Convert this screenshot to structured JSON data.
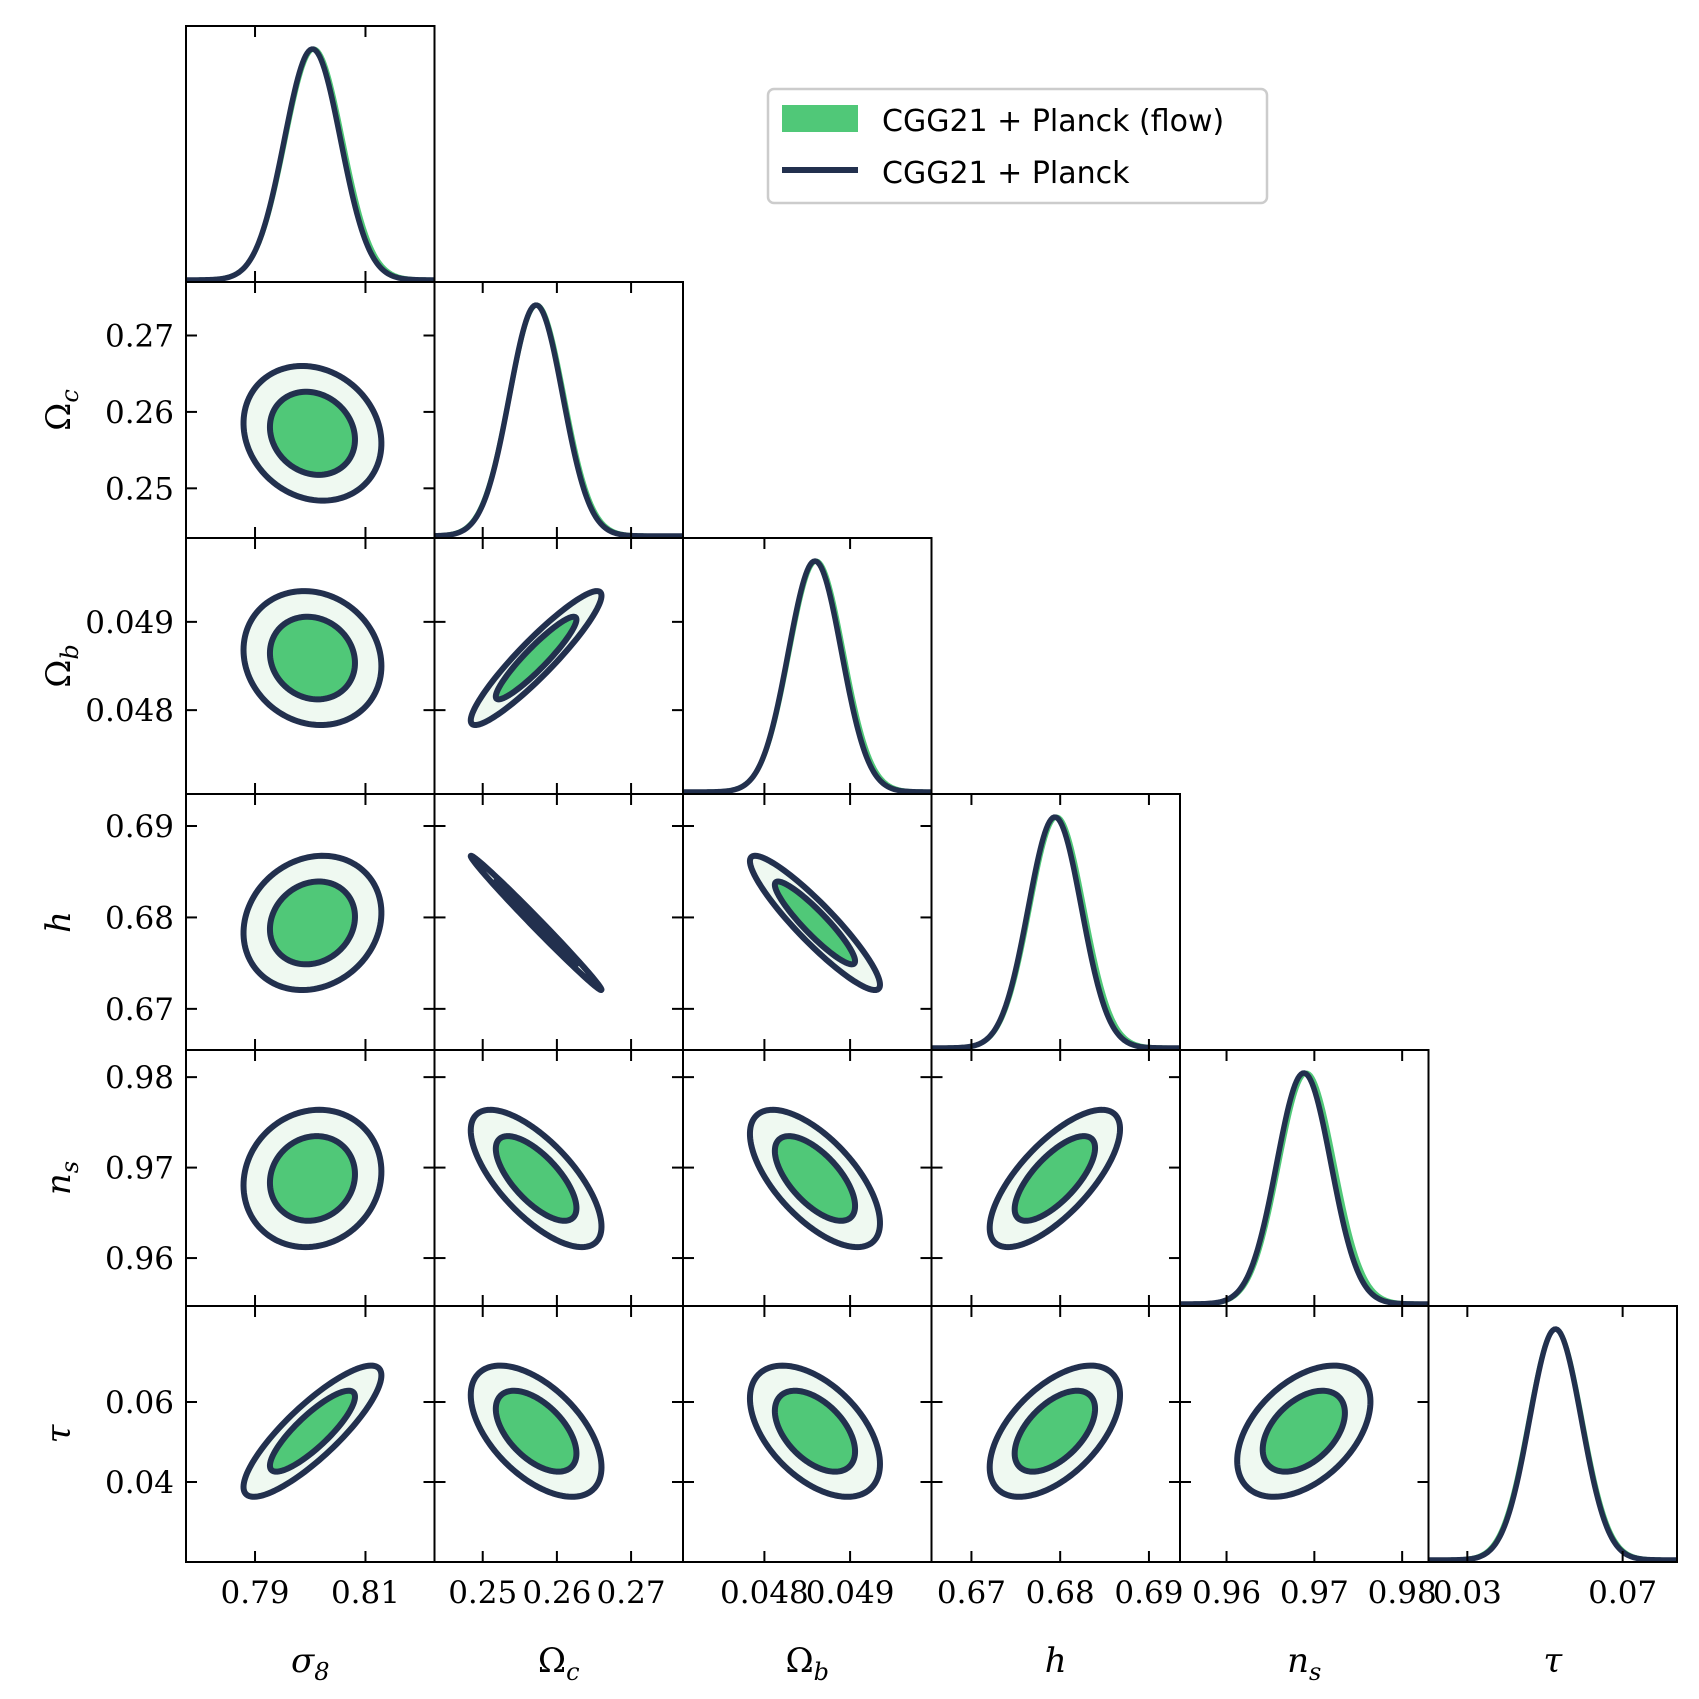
{
  "chart_data": {
    "type": "corner",
    "params": [
      {
        "key": "sigma8",
        "label": "σ",
        "sub": "8",
        "range": [
          0.7775,
          0.8225
        ],
        "ticks": [
          0.79,
          0.81
        ],
        "tick_labels": [
          "0.79",
          "0.81"
        ],
        "mean": 0.8004,
        "sd": 0.0051
      },
      {
        "key": "omega_c",
        "label": "Ω",
        "sub": "c",
        "range": [
          0.2435,
          0.277
        ],
        "ticks": [
          0.25,
          0.26,
          0.27
        ],
        "tick_labels": [
          "0.25",
          "0.26",
          "0.27"
        ],
        "mean": 0.2572,
        "sd": 0.0036
      },
      {
        "key": "omega_b",
        "label": "Ω",
        "sub": "b",
        "range": [
          0.04705,
          0.04995
        ],
        "ticks": [
          0.048,
          0.049
        ],
        "tick_labels": [
          "0.048",
          "0.049"
        ],
        "mean": 0.04859,
        "sd": 0.00031
      },
      {
        "key": "h",
        "label": "h",
        "sub": "",
        "range": [
          0.6655,
          0.6935
        ],
        "ticks": [
          0.67,
          0.68,
          0.69
        ],
        "tick_labels": [
          "0.67",
          "0.68",
          "0.69"
        ],
        "mean": 0.6794,
        "sd": 0.003
      },
      {
        "key": "n_s",
        "label": "n",
        "sub": "s",
        "range": [
          0.9547,
          0.983
        ],
        "ticks": [
          0.96,
          0.97,
          0.98
        ],
        "tick_labels": [
          "0.96",
          "0.97",
          "0.98"
        ],
        "mean": 0.9688,
        "sd": 0.0031
      },
      {
        "key": "tau",
        "label": "τ",
        "sub": "",
        "range": [
          0.02,
          0.084
        ],
        "ticks": [
          0.03,
          0.04,
          0.06,
          0.07
        ],
        "tick_labels": [
          "0.03",
          "0.04",
          "0.06",
          "0.07"
        ],
        "x_ticks": [
          0.03,
          0.07
        ],
        "y_ticks": [
          0.04,
          0.06
        ],
        "mean": 0.0527,
        "sd": 0.0067
      }
    ],
    "correlations": [
      {
        "i": 1,
        "j": 0,
        "rho": -0.15
      },
      {
        "i": 2,
        "j": 0,
        "rho": -0.12
      },
      {
        "i": 2,
        "j": 1,
        "rho": 0.93
      },
      {
        "i": 3,
        "j": 0,
        "rho": 0.15
      },
      {
        "i": 3,
        "j": 1,
        "rho": -0.995
      },
      {
        "i": 3,
        "j": 2,
        "rho": -0.92
      },
      {
        "i": 4,
        "j": 0,
        "rho": 0.1
      },
      {
        "i": 4,
        "j": 1,
        "rho": -0.7
      },
      {
        "i": 4,
        "j": 2,
        "rho": -0.65
      },
      {
        "i": 4,
        "j": 3,
        "rho": 0.72
      },
      {
        "i": 5,
        "j": 0,
        "rho": 0.85
      },
      {
        "i": 5,
        "j": 1,
        "rho": -0.55
      },
      {
        "i": 5,
        "j": 2,
        "rho": -0.5
      },
      {
        "i": 5,
        "j": 3,
        "rho": 0.55
      },
      {
        "i": 5,
        "j": 4,
        "rho": 0.45
      }
    ],
    "contour_levels": [
      0.68,
      0.95
    ],
    "series": [
      {
        "name": "CGG21 + Planck (flow)",
        "style": "filled",
        "color": "#50c878",
        "light_color": "#eff9f1"
      },
      {
        "name": "CGG21 + Planck",
        "style": "line",
        "color": "#22304e"
      }
    ],
    "legend_position": "upper-right"
  }
}
